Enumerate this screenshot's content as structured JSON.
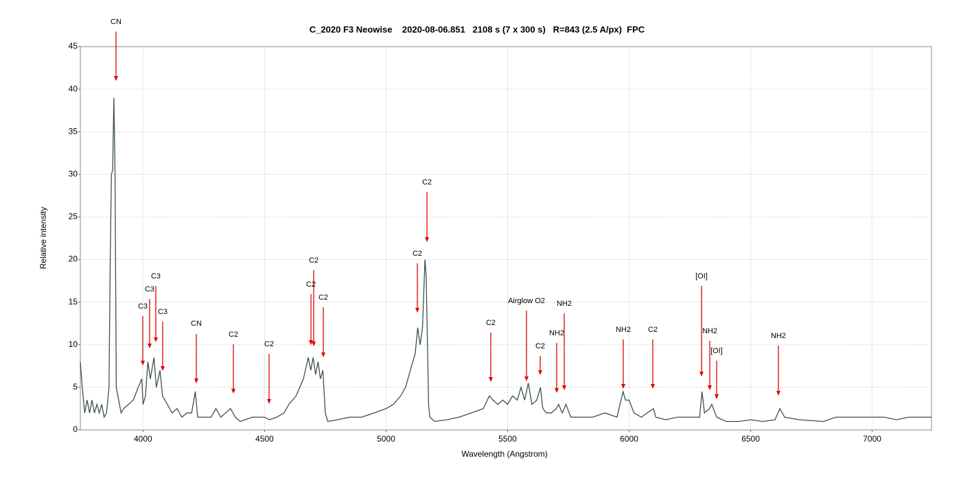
{
  "chart_data": {
    "type": "line",
    "title": "C_2020 F3 Neowise    2020-08-06.851   2108 s (7 x 300 s)   R=843 (2.5 A/px)  FPC",
    "x_label": "Wavelength (Angstrom)",
    "y_label": "Relative intensity",
    "xlim": [
      3742,
      7244
    ],
    "ylim": [
      0,
      45
    ],
    "xticks": [
      4000,
      4500,
      5000,
      5500,
      6000,
      6500,
      7000
    ],
    "yticks": [
      0,
      5,
      10,
      15,
      20,
      25,
      30,
      35,
      40,
      45
    ],
    "grid": true,
    "color": "#3d4f4f",
    "x": [
      3742,
      3750,
      3760,
      3770,
      3780,
      3790,
      3800,
      3810,
      3820,
      3830,
      3840,
      3850,
      3860,
      3865,
      3870,
      3875,
      3880,
      3885,
      3890,
      3900,
      3910,
      3920,
      3940,
      3960,
      3980,
      3995,
      4000,
      4010,
      4020,
      4030,
      4045,
      4055,
      4070,
      4080,
      4100,
      4120,
      4140,
      4160,
      4180,
      4200,
      4215,
      4225,
      4250,
      4280,
      4300,
      4320,
      4340,
      4360,
      4380,
      4400,
      4450,
      4500,
      4520,
      4550,
      4580,
      4600,
      4630,
      4660,
      4680,
      4690,
      4700,
      4710,
      4720,
      4730,
      4740,
      4750,
      4760,
      4800,
      4850,
      4900,
      4950,
      5000,
      5030,
      5060,
      5080,
      5100,
      5120,
      5130,
      5140,
      5150,
      5160,
      5165,
      5175,
      5180,
      5200,
      5250,
      5300,
      5350,
      5400,
      5425,
      5440,
      5460,
      5480,
      5500,
      5520,
      5540,
      5555,
      5570,
      5585,
      5600,
      5620,
      5635,
      5645,
      5660,
      5680,
      5700,
      5710,
      5725,
      5740,
      5760,
      5800,
      5850,
      5900,
      5950,
      5975,
      5985,
      6000,
      6020,
      6050,
      6100,
      6110,
      6150,
      6200,
      6250,
      6290,
      6300,
      6310,
      6330,
      6340,
      6360,
      6400,
      6450,
      6500,
      6550,
      6600,
      6620,
      6640,
      6700,
      6800,
      6850,
      6900,
      6950,
      7000,
      7050,
      7100,
      7150,
      7200,
      7244
    ],
    "values": [
      8,
      5,
      2,
      3.5,
      2,
      3.5,
      2,
      3,
      2,
      3,
      1.5,
      2,
      5,
      20,
      30,
      30.5,
      39,
      30,
      5,
      3.5,
      2,
      2.5,
      3,
      3.5,
      5,
      6,
      3,
      4,
      8,
      6,
      8.5,
      5,
      7,
      4,
      3,
      2,
      2.5,
      1.5,
      2,
      2,
      4.5,
      1.5,
      1.5,
      1.5,
      2.5,
      1.5,
      2,
      2.5,
      1.5,
      1,
      1.5,
      1.5,
      1.2,
      1.5,
      2,
      3,
      4,
      6,
      8.5,
      7,
      8.5,
      6.5,
      8,
      6,
      7,
      2,
      1,
      1.2,
      1.5,
      1.5,
      2,
      2.5,
      3,
      4,
      5,
      7,
      9,
      12,
      10,
      12,
      20,
      18,
      3,
      1.5,
      1,
      1.2,
      1.5,
      2,
      2.5,
      4,
      3.5,
      3,
      3.5,
      3,
      4,
      3.5,
      5,
      3.5,
      5.5,
      3,
      3.5,
      5,
      2.5,
      2,
      2,
      2.5,
      3,
      2,
      3,
      1.5,
      1.5,
      1.5,
      2,
      1.5,
      4.5,
      3.5,
      3.5,
      2,
      1.5,
      2.5,
      1.5,
      1.2,
      1.5,
      1.5,
      1.5,
      4.5,
      2,
      2.5,
      3,
      1.5,
      1,
      1,
      1.2,
      1,
      1.2,
      2.5,
      1.5,
      1.2,
      1,
      1.5,
      1.5,
      1.5,
      1.5,
      1.5,
      1.2,
      1.5,
      1.5,
      1.5
    ],
    "annotations": [
      "CN",
      "C3",
      "C3",
      "C3",
      "C3",
      "CN",
      "C2",
      "C2",
      "C2",
      "C2",
      "C2",
      "C2",
      "C2",
      "C2",
      "Airglow O2",
      "C2",
      "NH2",
      "NH2",
      "NH2",
      "C2",
      "[OI]",
      "NH2",
      "[OI]",
      "NH2"
    ]
  }
}
